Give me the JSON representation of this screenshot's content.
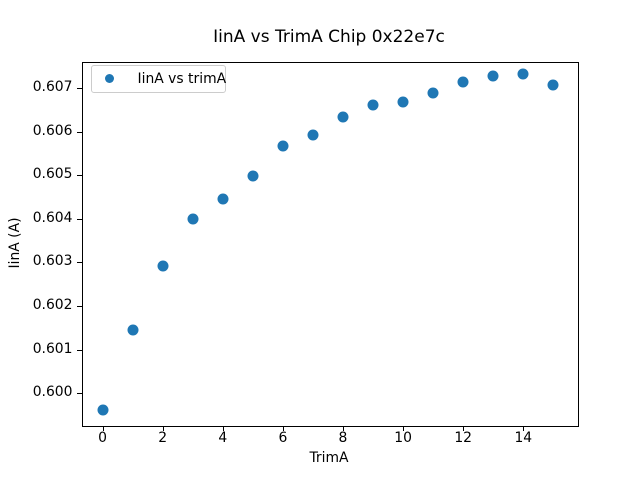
{
  "chart_data": {
    "type": "scatter",
    "title": "IinA vs TrimA Chip 0x22e7c",
    "xlabel": "TrimA",
    "ylabel": "IinA (A)",
    "legend": [
      {
        "label": "IinA vs trimA",
        "marker": "circle-icon",
        "color": "#1f77b4"
      }
    ],
    "legend_position": "upper left",
    "grid": false,
    "marker_color": "#1f77b4",
    "x": [
      0,
      1,
      2,
      3,
      4,
      5,
      6,
      7,
      8,
      9,
      10,
      11,
      12,
      13,
      14,
      15
    ],
    "series": [
      {
        "name": "IinA vs trimA",
        "values": [
          0.59961,
          0.60145,
          0.60292,
          0.604,
          0.60446,
          0.60499,
          0.60566,
          0.60593,
          0.60633,
          0.60662,
          0.60667,
          0.60689,
          0.60715,
          0.60727,
          0.60732,
          0.60707
        ]
      }
    ],
    "xlim": [
      -0.7,
      15.77
    ],
    "ylim": [
      0.59927,
      0.60761
    ],
    "x_ticks": [
      0,
      2,
      4,
      6,
      8,
      10,
      12,
      14
    ],
    "x_tick_labels": [
      "0",
      "2",
      "4",
      "6",
      "8",
      "10",
      "12",
      "14"
    ],
    "y_ticks": [
      0.6,
      0.601,
      0.602,
      0.603,
      0.604,
      0.605,
      0.606,
      0.607
    ],
    "y_tick_labels": [
      "0.600",
      "0.601",
      "0.602",
      "0.603",
      "0.604",
      "0.605",
      "0.606",
      "0.607"
    ]
  }
}
